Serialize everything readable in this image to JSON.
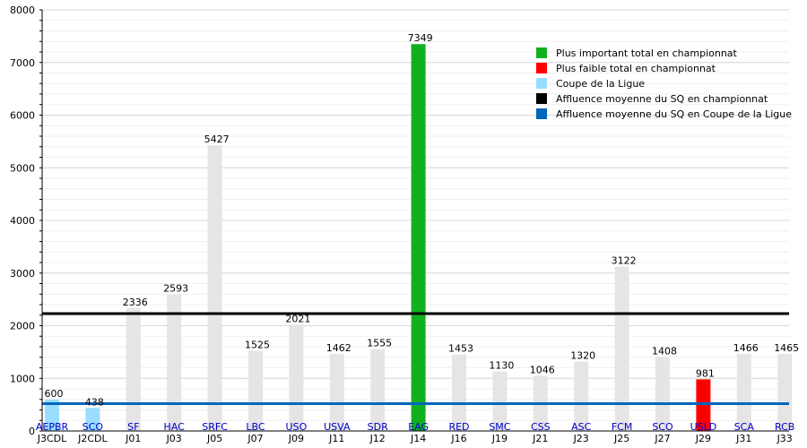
{
  "chart_data": {
    "type": "bar",
    "ylim": [
      0,
      8000
    ],
    "yticks": [
      0,
      1000,
      2000,
      3000,
      4000,
      5000,
      6000,
      7000,
      8000
    ],
    "minor_grid_step": 200,
    "grid": true,
    "legend_position": "top-right",
    "bars": [
      {
        "team": "AEPBR",
        "match": "J3CDL",
        "value": 600,
        "kind": "cup"
      },
      {
        "team": "SCO",
        "match": "J2CDL",
        "value": 438,
        "kind": "cup"
      },
      {
        "team": "SF",
        "match": "J01",
        "value": 2336,
        "kind": "league"
      },
      {
        "team": "HAC",
        "match": "J03",
        "value": 2593,
        "kind": "league"
      },
      {
        "team": "SRFC",
        "match": "J05",
        "value": 5427,
        "kind": "league"
      },
      {
        "team": "LBC",
        "match": "J07",
        "value": 1525,
        "kind": "league"
      },
      {
        "team": "USO",
        "match": "J09",
        "value": 2021,
        "kind": "league"
      },
      {
        "team": "USVA",
        "match": "J11",
        "value": 1462,
        "kind": "league"
      },
      {
        "team": "SDR",
        "match": "J12",
        "value": 1555,
        "kind": "league"
      },
      {
        "team": "EAG",
        "match": "J14",
        "value": 7349,
        "kind": "max"
      },
      {
        "team": "RED",
        "match": "J16",
        "value": 1453,
        "kind": "league"
      },
      {
        "team": "SMC",
        "match": "J19",
        "value": 1130,
        "kind": "league"
      },
      {
        "team": "CSS",
        "match": "J21",
        "value": 1046,
        "kind": "league"
      },
      {
        "team": "ASC",
        "match": "J23",
        "value": 1320,
        "kind": "league"
      },
      {
        "team": "FCM",
        "match": "J25",
        "value": 3122,
        "kind": "league"
      },
      {
        "team": "SCO",
        "match": "J27",
        "value": 1408,
        "kind": "league"
      },
      {
        "team": "USLD",
        "match": "J29",
        "value": 981,
        "kind": "min"
      },
      {
        "team": "SCA",
        "match": "J31",
        "value": 1466,
        "kind": "league"
      },
      {
        "team": "RCB",
        "match": "J33",
        "value": 1465,
        "kind": "league"
      }
    ],
    "reference_lines": [
      {
        "name": "Affluence moyenne du SQ en championnat",
        "value": 2230,
        "color": "#000000"
      },
      {
        "name": "Affluence moyenne du SQ en Coupe de la Ligue",
        "value": 519,
        "color": "#0066bb"
      }
    ],
    "legend": [
      {
        "label": "Plus important total en championnat",
        "color": "#12b01e"
      },
      {
        "label": "Plus faible total en championnat",
        "color": "#ff0000"
      },
      {
        "label": "Coupe de la Ligue",
        "color": "#99ddff"
      },
      {
        "label": "Affluence moyenne du SQ en championnat",
        "color": "#000000"
      },
      {
        "label": "Affluence moyenne du SQ en Coupe de la Ligue",
        "color": "#0066bb"
      }
    ],
    "colors": {
      "league": "#e5e5e5",
      "cup": "#99ddff",
      "max": "#12b01e",
      "min": "#ff0000",
      "team_label": "#0000cc",
      "grid_major": "#d8d8d8",
      "grid_minor": "#efefef"
    }
  }
}
